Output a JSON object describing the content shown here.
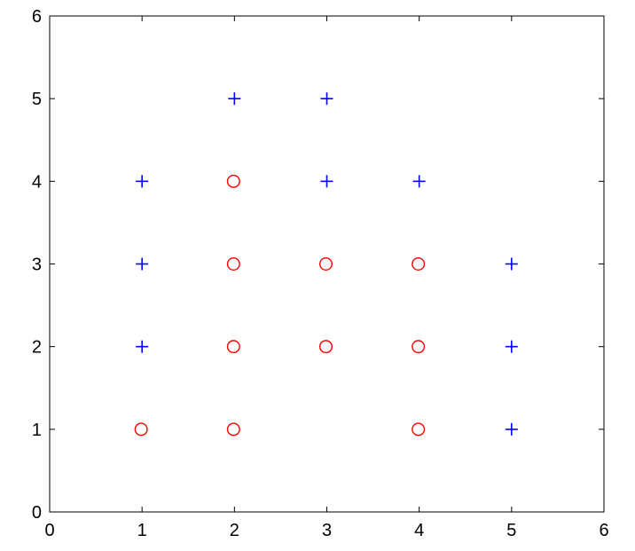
{
  "chart_data": {
    "type": "scatter",
    "title": "",
    "xlabel": "",
    "ylabel": "",
    "xlim": [
      0,
      6
    ],
    "ylim": [
      0,
      6
    ],
    "xticks": [
      0,
      1,
      2,
      3,
      4,
      5,
      6
    ],
    "yticks": [
      0,
      1,
      2,
      3,
      4,
      5,
      6
    ],
    "xtick_labels": [
      "0",
      "1",
      "2",
      "3",
      "4",
      "5",
      "6"
    ],
    "ytick_labels": [
      "0",
      "1",
      "2",
      "3",
      "4",
      "5",
      "6"
    ],
    "grid": false,
    "legend": "none",
    "series": [
      {
        "marker": "plus",
        "color": "#0000ff",
        "points": [
          [
            2,
            5
          ],
          [
            3,
            5
          ],
          [
            1,
            4
          ],
          [
            3,
            4
          ],
          [
            4,
            4
          ],
          [
            1,
            3
          ],
          [
            5,
            3
          ],
          [
            1,
            2
          ],
          [
            5,
            2
          ],
          [
            5,
            1
          ]
        ]
      },
      {
        "marker": "circle",
        "color": "#ff0000",
        "points": [
          [
            2,
            4
          ],
          [
            2,
            3
          ],
          [
            3,
            3
          ],
          [
            4,
            3
          ],
          [
            2,
            2
          ],
          [
            3,
            2
          ],
          [
            4,
            2
          ],
          [
            1,
            1
          ],
          [
            2,
            1
          ],
          [
            4,
            1
          ]
        ]
      }
    ]
  }
}
